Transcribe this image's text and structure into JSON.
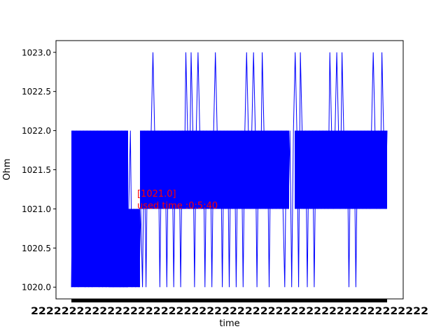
{
  "chart_data": {
    "type": "line",
    "title": "",
    "xlabel": "time",
    "ylabel": "Ohm",
    "ylim": [
      1019.85,
      1023.15
    ],
    "yticks": [
      1020.0,
      1020.5,
      1021.0,
      1021.5,
      1022.0,
      1022.5,
      1023.0
    ],
    "ytick_labels": [
      "1020.0",
      "1020.5",
      "1021.0",
      "1021.5",
      "1022.0",
      "1022.5",
      "1023.0"
    ],
    "x_tick_labels_note": "dense overlapping datetime tick labels (unreadable)",
    "grid": false,
    "series": [
      {
        "color": "#0000ff",
        "values": [
          1020,
          1022,
          1020,
          1022,
          1020,
          1022,
          1021,
          1022,
          1020,
          1022,
          1020,
          1022,
          1020,
          1022,
          1021,
          1022,
          1020,
          1022,
          1020,
          1022,
          1020,
          1022,
          1021,
          1022,
          1020,
          1022,
          1021,
          1022,
          1020,
          1022,
          1020,
          1022,
          1020,
          1021,
          1022,
          1020,
          1021,
          1020,
          1021,
          1020,
          1021,
          1020,
          1022,
          1020,
          1022,
          1021,
          1022,
          1023,
          1022,
          1021,
          1022,
          1020,
          1022,
          1021,
          1022,
          1020,
          1022,
          1021,
          1022,
          1020,
          1022,
          1021,
          1022,
          1020,
          1022,
          1021,
          1023,
          1022,
          1021,
          1023,
          1022,
          1020,
          1022,
          1023,
          1022,
          1021,
          1022,
          1020,
          1022,
          1021,
          1022,
          1020,
          1022,
          1023,
          1022,
          1021,
          1022,
          1020,
          1022,
          1021,
          1022,
          1020,
          1022,
          1021,
          1022,
          1020,
          1022,
          1021,
          1022,
          1020,
          1022,
          1023,
          1022,
          1021,
          1022,
          1023,
          1022,
          1020,
          1022,
          1021,
          1023,
          1022,
          1021,
          1022,
          1020,
          1022,
          1021,
          1022,
          1021,
          1022,
          1021,
          1022,
          1021,
          1020,
          1022,
          1021,
          1022,
          1020,
          1022,
          1023,
          1022,
          1020,
          1023,
          1022,
          1021,
          1022,
          1020,
          1022,
          1021,
          1022,
          1020,
          1022,
          1021,
          1022,
          1021,
          1022,
          1021,
          1022,
          1021,
          1023,
          1022,
          1021,
          1022,
          1023,
          1022,
          1021,
          1023,
          1022,
          1021,
          1022,
          1020,
          1022,
          1021,
          1022,
          1020,
          1022,
          1021,
          1022,
          1021,
          1022,
          1021,
          1022,
          1021,
          1022,
          1023,
          1022,
          1021,
          1022,
          1021,
          1023,
          1022,
          1021,
          1022
        ],
        "x_range": [
          0,
          1
        ]
      }
    ],
    "annotations": [
      {
        "text": "[1021.0]",
        "color": "#ff0000"
      },
      {
        "text": "used time :0:5:40",
        "color": "#ff0000"
      }
    ]
  }
}
